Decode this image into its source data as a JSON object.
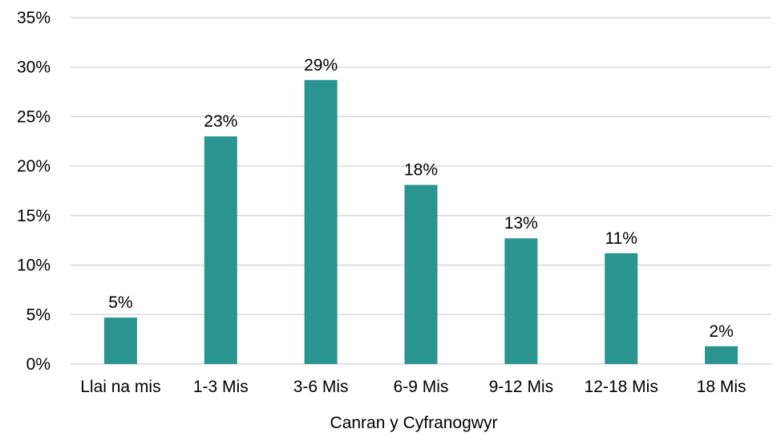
{
  "chart_data": {
    "type": "bar",
    "categories": [
      "Llai na mis",
      "1-3 Mis",
      "3-6 Mis",
      "6-9 Mis",
      "9-12 Mis",
      "12-18 Mis",
      "18 Mis"
    ],
    "values": [
      4.7,
      23.0,
      28.7,
      18.1,
      12.7,
      11.2,
      1.8
    ],
    "data_labels": [
      "5%",
      "23%",
      "29%",
      "18%",
      "13%",
      "11%",
      "2%"
    ],
    "xlabel": "Canran y Cyfranogwyr",
    "ylabel": "",
    "ylim": [
      0,
      35
    ],
    "y_ticks": [
      0,
      5,
      10,
      15,
      20,
      25,
      30,
      35
    ],
    "y_tick_labels": [
      "0%",
      "5%",
      "10%",
      "15%",
      "20%",
      "25%",
      "30%",
      "35%"
    ],
    "grid": true,
    "bar_color": "#2a9490",
    "grid_color": "#d9d9d9"
  }
}
